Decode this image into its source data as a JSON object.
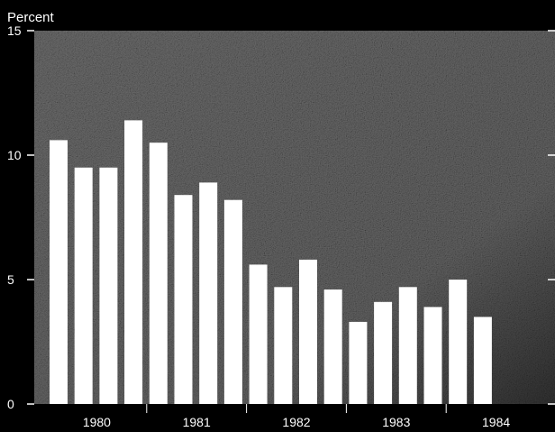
{
  "chart_data": {
    "type": "bar",
    "ylabel": "Percent",
    "ylim": [
      0,
      15
    ],
    "yticks": [
      "0",
      "5",
      "10",
      "15"
    ],
    "year_labels": [
      "1980",
      "1981",
      "1982",
      "1983",
      "1984"
    ],
    "values": [
      10.6,
      9.5,
      9.5,
      11.4,
      10.5,
      8.4,
      8.9,
      8.2,
      5.6,
      4.7,
      5.8,
      4.6,
      3.3,
      4.1,
      4.7,
      3.9,
      5.0,
      3.5
    ],
    "grid": false,
    "colors": {
      "background": "#000000",
      "plot": "#6e6e6e",
      "bar": "#ffffff",
      "text": "#ffffff"
    }
  }
}
